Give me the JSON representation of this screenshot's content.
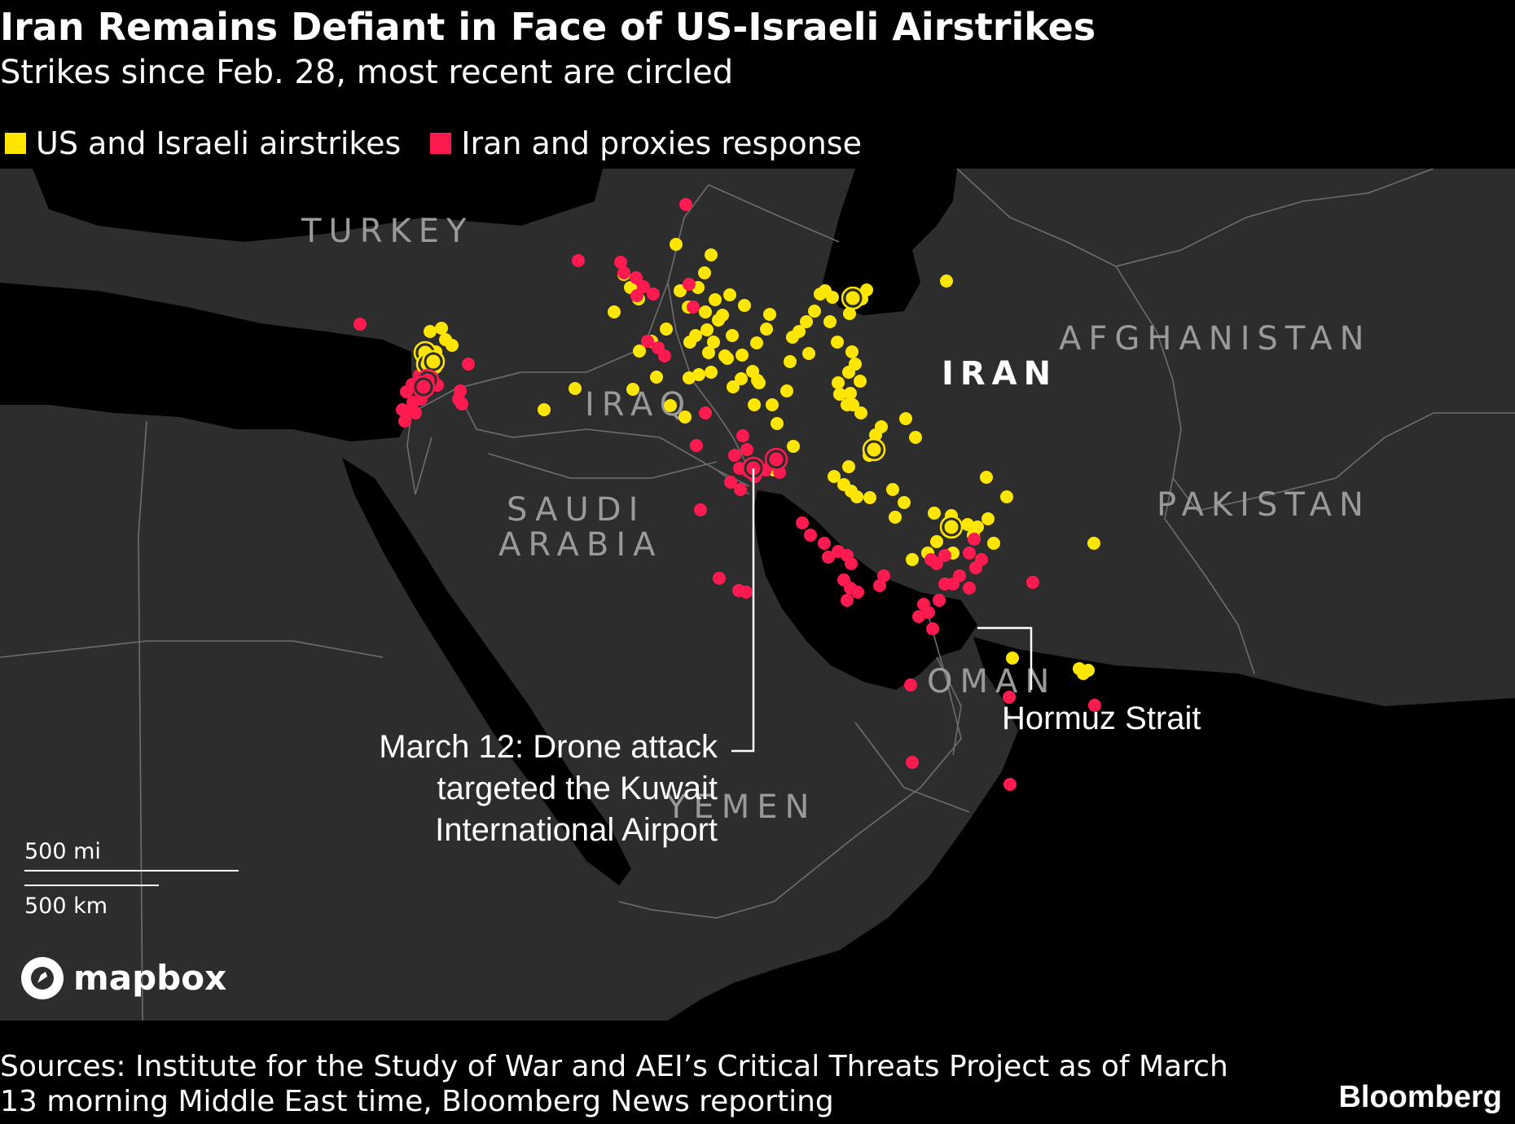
{
  "header": {
    "title": "Iran Remains Defiant in Face of US-Israeli Airstrikes",
    "subtitle": "Strikes since Feb. 28, most recent are circled"
  },
  "legend": [
    {
      "label": "US and Israeli airstrikes",
      "color": "#ffe600"
    },
    {
      "label": "Iran and proxies response",
      "color": "#ff1a4f"
    }
  ],
  "map": {
    "countries": {
      "turkey": "TURKEY",
      "iraq": "IRAQ",
      "iran": "IRAN",
      "afghanistan": "AFGHANISTAN",
      "pakistan": "PAKISTAN",
      "saudi_line1": "SAUDI",
      "saudi_line2": "ARABIA",
      "oman": "OMAN",
      "yemen": "YEMEN"
    },
    "annotations": {
      "hormuz": "Hormuz Strait",
      "kuwait_line1": "March 12: Drone attack",
      "kuwait_line2": "targeted the Kuwait",
      "kuwait_line3": "International Airport"
    },
    "scale": {
      "miles": "500 mi",
      "km": "500 km"
    },
    "attribution": "mapbox",
    "colors": {
      "land": "#2d2d2d",
      "water": "#000000",
      "border": "#6e6e6e"
    }
  },
  "footer": {
    "sources": "Sources: Institute for the Study of War and AEI’s Critical Threats Project as of March 13 morning Middle East time, Bloomberg News reporting",
    "brand": "Bloomberg"
  }
}
